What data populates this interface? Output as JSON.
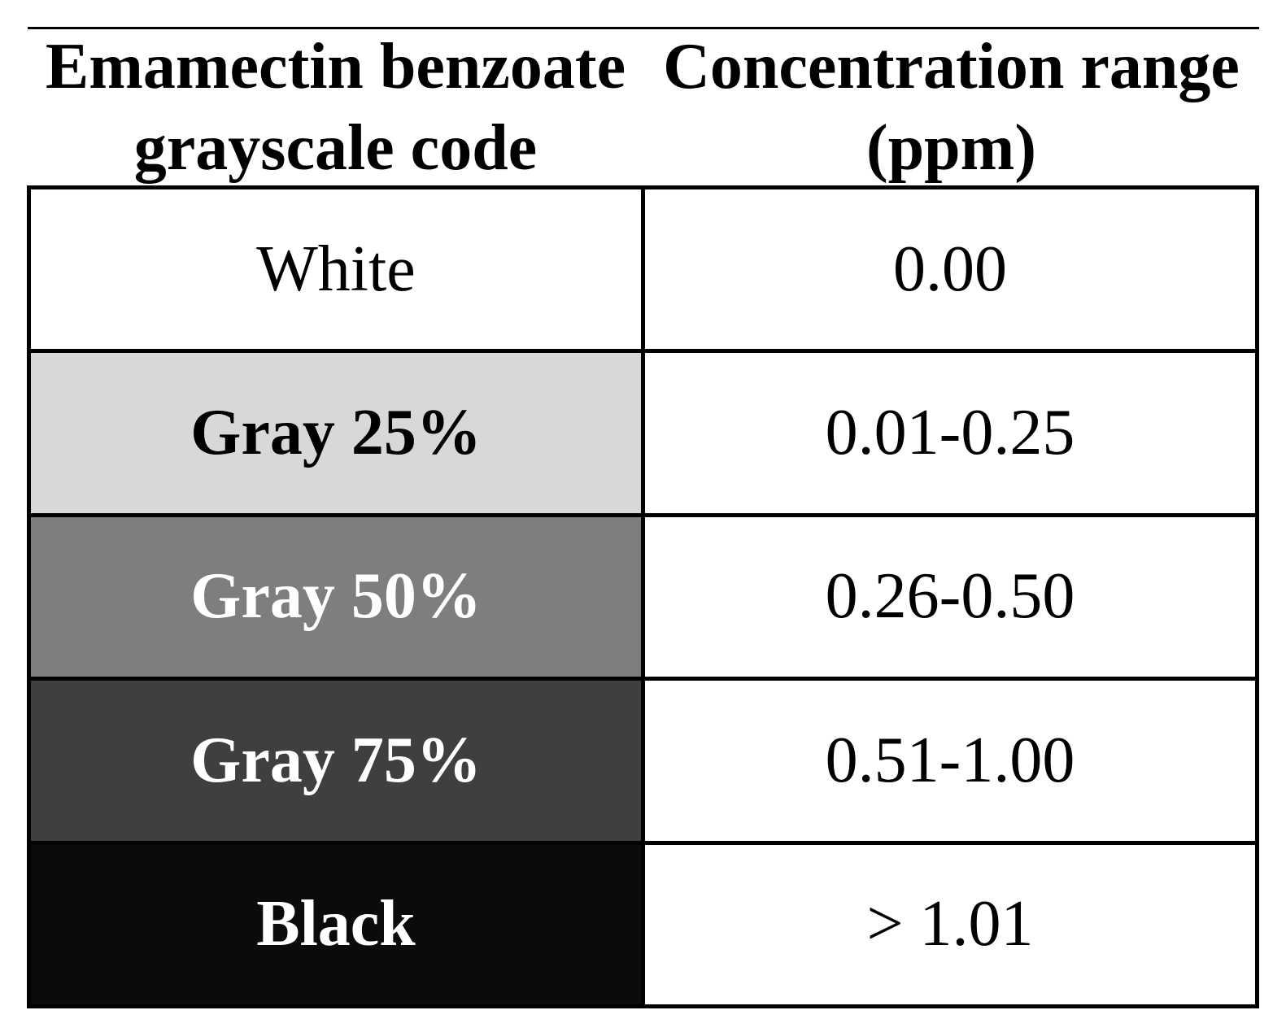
{
  "figure": {
    "type": "table",
    "columns": [
      {
        "header": "Emamectin benzoate grayscale code"
      },
      {
        "header": "Concentration range (ppm)"
      }
    ],
    "rows": [
      {
        "code": "White",
        "range": "0.00",
        "swatch_bg": "#ffffff",
        "swatch_fg": "#000000"
      },
      {
        "code": "Gray 25%",
        "range": "0.01-0.25",
        "swatch_bg": "#d8d8d8",
        "swatch_fg": "#000000"
      },
      {
        "code": "Gray 50%",
        "range": "0.26-0.50",
        "swatch_bg": "#7e7e7e",
        "swatch_fg": "#ffffff"
      },
      {
        "code": "Gray 75%",
        "range": "0.51-1.00",
        "swatch_bg": "#3f3f3f",
        "swatch_fg": "#ffffff"
      },
      {
        "code": "Black",
        "range": "> 1.01",
        "swatch_bg": "#0b0b0b",
        "swatch_fg": "#ffffff"
      }
    ],
    "colors": {
      "border": "#000000",
      "text": "#000000",
      "page_bg": "#ffffff"
    }
  }
}
